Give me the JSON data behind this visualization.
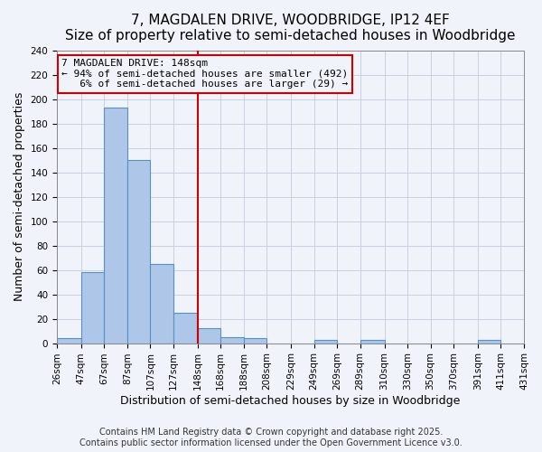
{
  "title": "7, MAGDALEN DRIVE, WOODBRIDGE, IP12 4EF",
  "subtitle": "Size of property relative to semi-detached houses in Woodbridge",
  "xlabel": "Distribution of semi-detached houses by size in Woodbridge",
  "ylabel": "Number of semi-detached properties",
  "bar_edges": [
    26,
    47,
    67,
    87,
    107,
    127,
    148,
    168,
    188,
    208,
    229,
    249,
    269,
    289,
    310,
    330,
    350,
    370,
    391,
    411,
    431
  ],
  "bar_heights": [
    4,
    58,
    193,
    150,
    65,
    25,
    12,
    5,
    4,
    0,
    0,
    3,
    0,
    3,
    0,
    0,
    0,
    0,
    3,
    0
  ],
  "property_size": 148,
  "bar_facecolor": "#aec6e8",
  "bar_edgecolor": "#5590c8",
  "vline_color": "#cc0000",
  "annotation_text": "7 MAGDALEN DRIVE: 148sqm\n← 94% of semi-detached houses are smaller (492)\n   6% of semi-detached houses are larger (29) →",
  "annotation_box_edgecolor": "#cc0000",
  "ylim": [
    0,
    240
  ],
  "yticks": [
    0,
    20,
    40,
    60,
    80,
    100,
    120,
    140,
    160,
    180,
    200,
    220,
    240
  ],
  "tick_labels": [
    "26sqm",
    "47sqm",
    "67sqm",
    "87sqm",
    "107sqm",
    "127sqm",
    "148sqm",
    "168sqm",
    "188sqm",
    "208sqm",
    "229sqm",
    "249sqm",
    "269sqm",
    "289sqm",
    "310sqm",
    "330sqm",
    "350sqm",
    "370sqm",
    "391sqm",
    "411sqm",
    "431sqm"
  ],
  "footer_line1": "Contains HM Land Registry data © Crown copyright and database right 2025.",
  "footer_line2": "Contains public sector information licensed under the Open Government Licence v3.0.",
  "bg_color": "#f0f4fa",
  "grid_color": "#c8d0e0",
  "title_fontsize": 11,
  "xlabel_fontsize": 9,
  "ylabel_fontsize": 9,
  "tick_fontsize": 7.5,
  "footer_fontsize": 7,
  "annotation_fontsize": 8
}
